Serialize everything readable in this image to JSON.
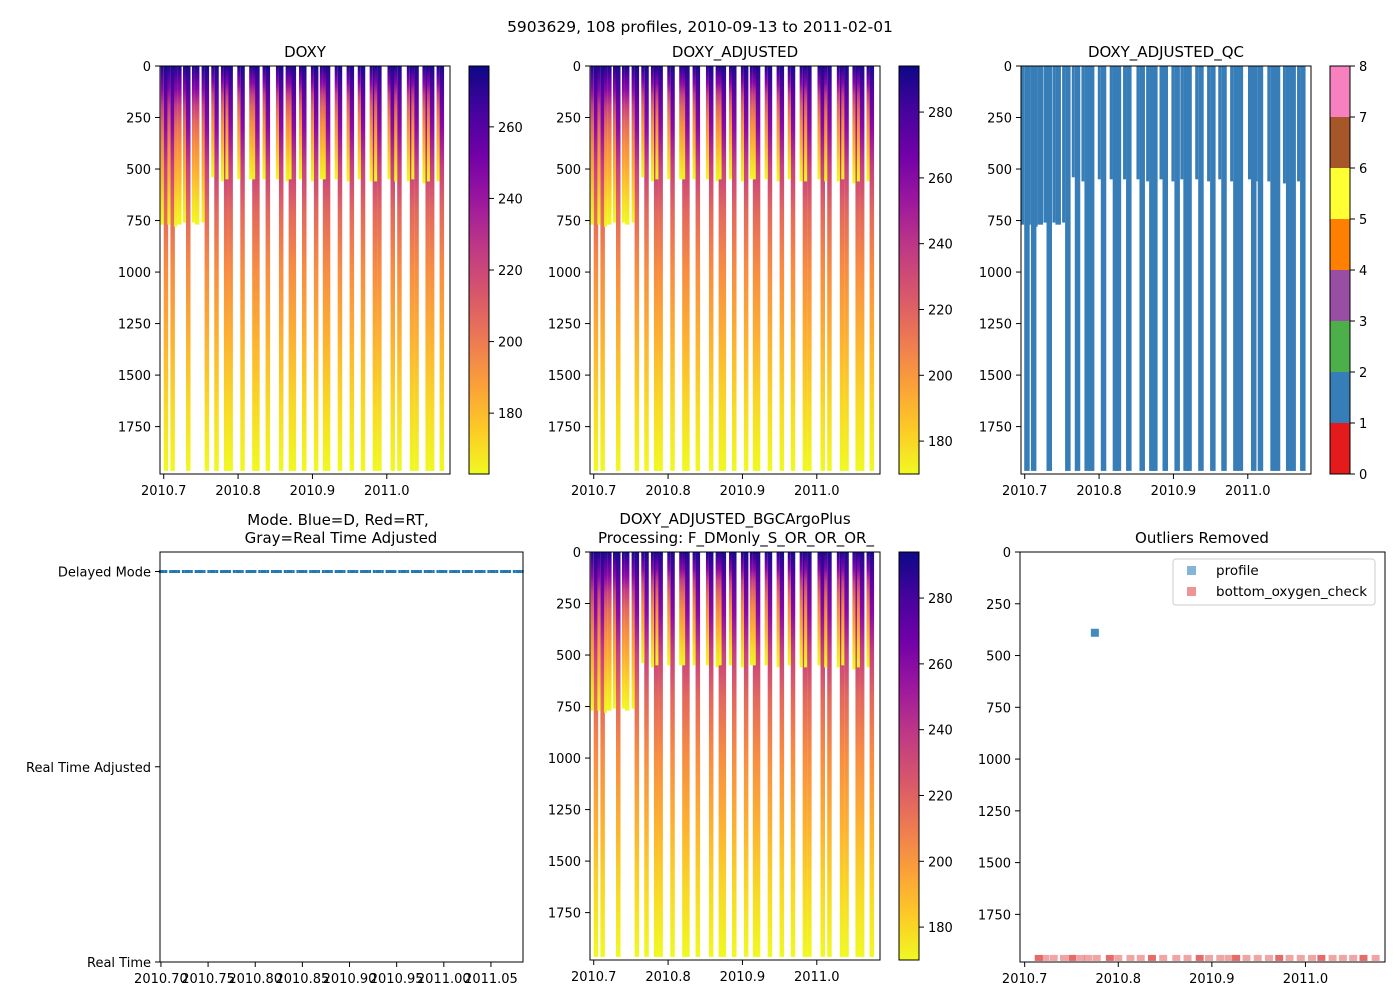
{
  "suptitle": "5903629, 108 profiles, 2010-09-13 to 2011-02-01",
  "colors": {
    "plasma": [
      "#0d0887",
      "#46039f",
      "#7201a8",
      "#9c179e",
      "#bd3786",
      "#d8576b",
      "#ed7953",
      "#fb9f3a",
      "#fdca26",
      "#f0f921"
    ],
    "qc": [
      "#e41a1c",
      "#377eb8",
      "#4daf4a",
      "#984ea3",
      "#ff7f00",
      "#ffff33",
      "#a65628",
      "#f781bf",
      "#999999"
    ],
    "mode_blue": "#1f77b4",
    "profile_marker": "#1f77b4",
    "bottom_marker": "#e35a5a"
  },
  "chart_data": [
    {
      "id": "doxy",
      "type": "heatmap",
      "title": "DOXY",
      "xlim": [
        2010.695,
        2011.085
      ],
      "ylim": [
        1980,
        0
      ],
      "xticks": [
        2010.7,
        2010.8,
        2010.9,
        2011.0
      ],
      "xtick_labels": [
        "2010.7",
        "2010.8",
        "2010.9",
        "2011.0"
      ],
      "yticks": [
        0,
        250,
        500,
        750,
        1000,
        1250,
        1500,
        1750
      ],
      "ytick_labels": [
        "0",
        "250",
        "500",
        "750",
        "1000",
        "1250",
        "1500",
        "1750"
      ],
      "colorbar": {
        "range": [
          163,
          277
        ],
        "ticks": [
          180,
          200,
          220,
          240,
          260
        ],
        "labels": [
          "180",
          "200",
          "220",
          "240",
          "260"
        ]
      }
    },
    {
      "id": "doxy_adjusted",
      "type": "heatmap",
      "title": "DOXY_ADJUSTED",
      "xlim": [
        2010.695,
        2011.085
      ],
      "ylim": [
        1980,
        0
      ],
      "xticks": [
        2010.7,
        2010.8,
        2010.9,
        2011.0
      ],
      "xtick_labels": [
        "2010.7",
        "2010.8",
        "2010.9",
        "2011.0"
      ],
      "yticks": [
        0,
        250,
        500,
        750,
        1000,
        1250,
        1500,
        1750
      ],
      "ytick_labels": [
        "0",
        "250",
        "500",
        "750",
        "1000",
        "1250",
        "1500",
        "1750"
      ],
      "colorbar": {
        "range": [
          170,
          294
        ],
        "ticks": [
          180,
          200,
          220,
          240,
          260,
          280
        ],
        "labels": [
          "180",
          "200",
          "220",
          "240",
          "260",
          "280"
        ]
      }
    },
    {
      "id": "doxy_adjusted_qc",
      "type": "heatmap",
      "title": "DOXY_ADJUSTED_QC",
      "xlim": [
        2010.695,
        2011.085
      ],
      "ylim": [
        1980,
        0
      ],
      "xticks": [
        2010.7,
        2010.8,
        2010.9,
        2011.0
      ],
      "xtick_labels": [
        "2010.7",
        "2010.8",
        "2010.9",
        "2011.0"
      ],
      "yticks": [
        0,
        250,
        500,
        750,
        1000,
        1250,
        1500,
        1750
      ],
      "ytick_labels": [
        "0",
        "250",
        "500",
        "750",
        "1000",
        "1250",
        "1500",
        "1750"
      ],
      "qc_value": 1,
      "colorbar": {
        "range": [
          0,
          8
        ],
        "ticks": [
          0,
          1,
          2,
          3,
          4,
          5,
          6,
          7,
          8
        ],
        "labels": [
          "0",
          "1",
          "2",
          "3",
          "4",
          "5",
          "6",
          "7",
          "8"
        ]
      }
    },
    {
      "id": "mode",
      "type": "scatter",
      "title": "Mode. Blue=D, Red=RT,",
      "title2": "Gray=Real Time Adjusted",
      "xlim": [
        2010.699,
        2011.084
      ],
      "xticks": [
        2010.7,
        2010.75,
        2010.8,
        2010.85,
        2010.9,
        2010.95,
        2011.0,
        2011.05
      ],
      "xtick_labels": [
        "2010.70",
        "2010.75",
        "2010.80",
        "2010.85",
        "2010.90",
        "2010.95",
        "2011.00",
        "2011.05"
      ],
      "ycategories": [
        "Real Time",
        "Real Time Adjusted",
        "Delayed Mode"
      ],
      "ylim": [
        0,
        2.1
      ],
      "series": [
        {
          "name": "Delayed Mode",
          "category_index": 2
        }
      ]
    },
    {
      "id": "bgcargoplus",
      "type": "heatmap",
      "title": "DOXY_ADJUSTED_BGCArgoPlus",
      "title2": "Processing: F_DMonly_S_OR_OR_OR_",
      "xlim": [
        2010.695,
        2011.085
      ],
      "ylim": [
        1980,
        0
      ],
      "xticks": [
        2010.7,
        2010.8,
        2010.9,
        2011.0
      ],
      "xtick_labels": [
        "2010.7",
        "2010.8",
        "2010.9",
        "2011.0"
      ],
      "yticks": [
        0,
        250,
        500,
        750,
        1000,
        1250,
        1500,
        1750
      ],
      "ytick_labels": [
        "0",
        "250",
        "500",
        "750",
        "1000",
        "1250",
        "1500",
        "1750"
      ],
      "colorbar": {
        "range": [
          170,
          294
        ],
        "ticks": [
          180,
          200,
          220,
          240,
          260,
          280
        ],
        "labels": [
          "180",
          "200",
          "220",
          "240",
          "260",
          "280"
        ]
      }
    },
    {
      "id": "outliers",
      "type": "scatter",
      "title": "Outliers Removed",
      "xlim": [
        2010.695,
        2011.085
      ],
      "ylim": [
        1980,
        0
      ],
      "xticks": [
        2010.7,
        2010.8,
        2010.9,
        2011.0
      ],
      "xtick_labels": [
        "2010.7",
        "2010.8",
        "2010.9",
        "2011.0"
      ],
      "yticks": [
        0,
        250,
        500,
        750,
        1000,
        1250,
        1500,
        1750
      ],
      "ytick_labels": [
        "0",
        "250",
        "500",
        "750",
        "1000",
        "1250",
        "1500",
        "1750"
      ],
      "legend": {
        "location": "upper right",
        "entries": [
          "profile",
          "bottom_oxygen_check"
        ]
      },
      "series": [
        {
          "name": "profile",
          "points": [
            {
              "x": 2010.775,
              "y": 390
            }
          ]
        },
        {
          "name": "bottom_oxygen_check",
          "y": 1970,
          "x": [
            2010.715,
            2010.722,
            2010.731,
            2010.742,
            2010.751,
            2010.76,
            2010.768,
            2010.777,
            2010.791,
            2010.8,
            2010.813,
            2010.824,
            2010.836,
            2010.848,
            2010.862,
            2010.874,
            2010.887,
            2010.897,
            2010.909,
            2010.918,
            2010.926,
            2010.937,
            2010.949,
            2010.961,
            2010.972,
            2010.983,
            2010.995,
            2011.007,
            2011.017,
            2011.029,
            2011.04,
            2011.051,
            2011.062,
            2011.075
          ]
        }
      ]
    }
  ],
  "profile_times": [
    2010.703,
    2010.712,
    2010.721,
    2010.733,
    2010.745,
    2010.758,
    2010.771,
    2010.784,
    2010.79,
    2010.806,
    2010.822,
    2010.826,
    2010.84,
    2010.858,
    2010.871,
    2010.875,
    2010.889,
    2010.905,
    2010.917,
    2010.921,
    2010.937,
    2010.953,
    2010.968,
    2010.984,
    2010.99,
    2011.008,
    2011.017,
    2011.034,
    2011.04,
    2011.055,
    2011.061,
    2011.074
  ],
  "surface_depths": [
    770,
    770,
    780,
    760,
    760,
    760,
    540,
    560,
    550,
    550,
    550,
    550,
    550,
    550,
    560,
    550,
    550,
    560,
    550,
    550,
    550,
    560,
    550,
    560,
    560,
    550,
    560,
    560,
    550,
    570,
    560,
    560
  ]
}
